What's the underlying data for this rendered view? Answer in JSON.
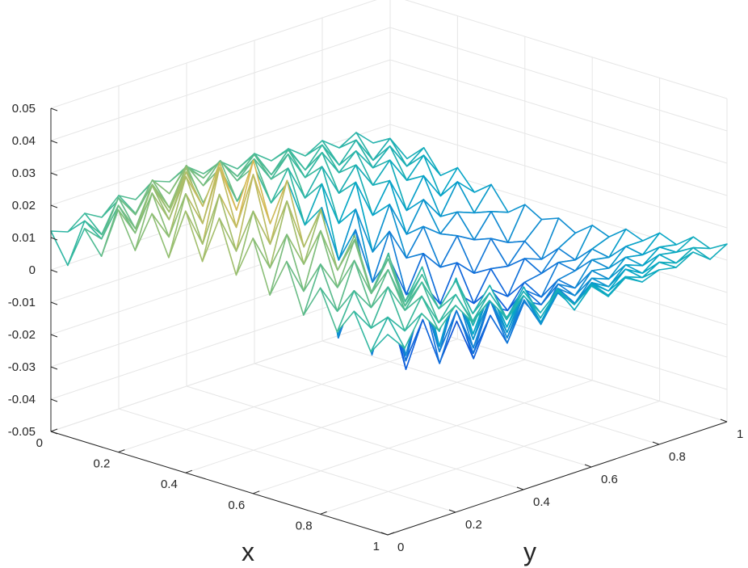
{
  "chart_data": {
    "type": "surface-mesh",
    "title": "",
    "xlabel": "x",
    "ylabel": "y",
    "zlabel": "",
    "xlim": [
      0,
      1
    ],
    "ylim": [
      0,
      1
    ],
    "zlim": [
      -0.05,
      0.05
    ],
    "grid": true,
    "colormap": "parula",
    "x_ticks": [
      "0",
      "0.2",
      "0.4",
      "0.6",
      "0.8",
      "1"
    ],
    "y_ticks": [
      "0",
      "0.2",
      "0.4",
      "0.6",
      "0.8",
      "1"
    ],
    "z_ticks": [
      "-0.05",
      "-0.04",
      "-0.03",
      "-0.02",
      "-0.01",
      "0",
      "0.01",
      "0.02",
      "0.03",
      "0.04",
      "0.05"
    ],
    "mesh_resolution": 21,
    "z_grid": [
      [
        0.012,
        0.01,
        0.014,
        0.011,
        0.016,
        0.013,
        0.017,
        0.015,
        0.018,
        0.014,
        0.016,
        0.012,
        0.015,
        0.011,
        0.013,
        0.009,
        0.012,
        0.008,
        0.011,
        0.006,
        0.002
      ],
      [
        0.003,
        0.015,
        0.009,
        0.018,
        0.012,
        0.02,
        0.014,
        0.021,
        0.016,
        0.019,
        0.013,
        0.018,
        0.01,
        0.016,
        0.008,
        0.014,
        0.006,
        0.012,
        0.004,
        0.009,
        0.001
      ],
      [
        0.016,
        0.011,
        0.022,
        0.015,
        0.024,
        0.018,
        0.025,
        0.017,
        0.023,
        0.015,
        0.02,
        0.012,
        0.018,
        0.009,
        0.015,
        0.007,
        0.012,
        0.005,
        0.01,
        0.002,
        0.006
      ],
      [
        0.009,
        0.023,
        0.014,
        0.026,
        0.017,
        0.028,
        0.015,
        0.024,
        0.012,
        0.021,
        0.008,
        0.017,
        0.006,
        0.014,
        0.004,
        0.011,
        0.003,
        0.009,
        0.001,
        0.007,
        -0.001
      ],
      [
        0.025,
        0.016,
        0.029,
        0.019,
        0.031,
        0.014,
        0.026,
        0.009,
        0.021,
        0.004,
        0.016,
        0.001,
        0.012,
        -0.002,
        0.009,
        -0.003,
        0.006,
        -0.005,
        0.004,
        -0.004,
        0.003
      ],
      [
        0.014,
        0.03,
        0.02,
        0.033,
        0.017,
        0.028,
        0.006,
        0.019,
        -0.004,
        0.012,
        -0.008,
        0.008,
        -0.01,
        0.004,
        -0.011,
        0.002,
        -0.009,
        0.0,
        -0.007,
        0.002,
        -0.003
      ],
      [
        0.027,
        0.018,
        0.035,
        0.024,
        0.03,
        0.01,
        0.022,
        -0.005,
        0.011,
        -0.014,
        0.004,
        -0.018,
        0.001,
        -0.017,
        -0.003,
        -0.013,
        -0.005,
        -0.009,
        -0.004,
        -0.006,
        0.001
      ],
      [
        0.015,
        0.033,
        0.022,
        0.039,
        0.018,
        0.024,
        -0.002,
        0.012,
        -0.016,
        0.003,
        -0.022,
        -0.004,
        -0.024,
        -0.008,
        -0.021,
        -0.01,
        -0.016,
        -0.008,
        -0.011,
        -0.004,
        -0.006
      ],
      [
        0.031,
        0.019,
        0.041,
        0.026,
        0.034,
        0.008,
        0.019,
        -0.011,
        0.006,
        -0.024,
        -0.005,
        -0.028,
        -0.012,
        -0.03,
        -0.016,
        -0.024,
        -0.013,
        -0.018,
        -0.009,
        -0.012,
        -0.002
      ],
      [
        0.017,
        0.036,
        0.024,
        0.043,
        0.016,
        0.027,
        -0.004,
        0.009,
        -0.02,
        -0.008,
        -0.029,
        -0.016,
        -0.033,
        -0.02,
        -0.031,
        -0.019,
        -0.024,
        -0.015,
        -0.016,
        -0.01,
        -0.005
      ],
      [
        0.032,
        0.02,
        0.042,
        0.025,
        0.036,
        0.006,
        0.021,
        -0.013,
        0.004,
        -0.026,
        -0.008,
        -0.034,
        -0.015,
        -0.035,
        -0.019,
        -0.03,
        -0.018,
        -0.022,
        -0.012,
        -0.014,
        -0.003
      ],
      [
        0.016,
        0.034,
        0.022,
        0.04,
        0.014,
        0.025,
        -0.006,
        0.01,
        -0.019,
        -0.006,
        -0.028,
        -0.017,
        -0.032,
        -0.021,
        -0.03,
        -0.02,
        -0.023,
        -0.016,
        -0.015,
        -0.009,
        -0.006
      ],
      [
        0.029,
        0.018,
        0.037,
        0.021,
        0.031,
        0.005,
        0.018,
        -0.012,
        0.005,
        -0.023,
        -0.006,
        -0.029,
        -0.013,
        -0.031,
        -0.017,
        -0.026,
        -0.015,
        -0.019,
        -0.01,
        -0.011,
        -0.002
      ],
      [
        0.013,
        0.03,
        0.019,
        0.034,
        0.012,
        0.022,
        -0.004,
        0.011,
        -0.015,
        -0.002,
        -0.022,
        -0.011,
        -0.026,
        -0.016,
        -0.024,
        -0.015,
        -0.018,
        -0.012,
        -0.011,
        -0.006,
        -0.004
      ],
      [
        0.025,
        0.014,
        0.031,
        0.017,
        0.026,
        0.006,
        0.017,
        -0.007,
        0.007,
        -0.017,
        -0.002,
        -0.021,
        -0.008,
        -0.023,
        -0.012,
        -0.019,
        -0.01,
        -0.013,
        -0.006,
        -0.007,
        0.0
      ],
      [
        0.01,
        0.024,
        0.015,
        0.028,
        0.01,
        0.02,
        -0.001,
        0.012,
        -0.009,
        0.003,
        -0.015,
        -0.004,
        -0.018,
        -0.008,
        -0.016,
        -0.008,
        -0.012,
        -0.006,
        -0.007,
        -0.002,
        -0.002
      ],
      [
        0.02,
        0.011,
        0.025,
        0.013,
        0.022,
        0.007,
        0.016,
        -0.002,
        0.009,
        -0.01,
        0.002,
        -0.013,
        -0.003,
        -0.014,
        -0.006,
        -0.011,
        -0.005,
        -0.007,
        -0.002,
        -0.003,
        0.002
      ],
      [
        0.008,
        0.019,
        0.012,
        0.022,
        0.009,
        0.017,
        0.002,
        0.012,
        -0.004,
        0.006,
        -0.008,
        0.001,
        -0.01,
        -0.002,
        -0.009,
        -0.003,
        -0.006,
        -0.001,
        -0.003,
        0.001,
        0.0
      ],
      [
        0.016,
        0.009,
        0.02,
        0.011,
        0.018,
        0.008,
        0.015,
        0.003,
        0.01,
        -0.002,
        0.006,
        -0.005,
        0.002,
        -0.006,
        0.0,
        -0.004,
        0.001,
        -0.002,
        0.002,
        0.001,
        0.004
      ],
      [
        0.005,
        0.014,
        0.008,
        0.017,
        0.007,
        0.014,
        0.004,
        0.011,
        0.001,
        0.008,
        -0.002,
        0.005,
        -0.003,
        0.003,
        -0.002,
        0.002,
        0.0,
        0.003,
        0.001,
        0.004,
        0.002
      ],
      [
        0.012,
        0.006,
        0.015,
        0.008,
        0.014,
        0.007,
        0.012,
        0.005,
        0.01,
        0.003,
        0.008,
        0.002,
        0.006,
        0.001,
        0.005,
        0.002,
        0.004,
        0.003,
        0.006,
        0.002,
        0.005
      ]
    ]
  }
}
